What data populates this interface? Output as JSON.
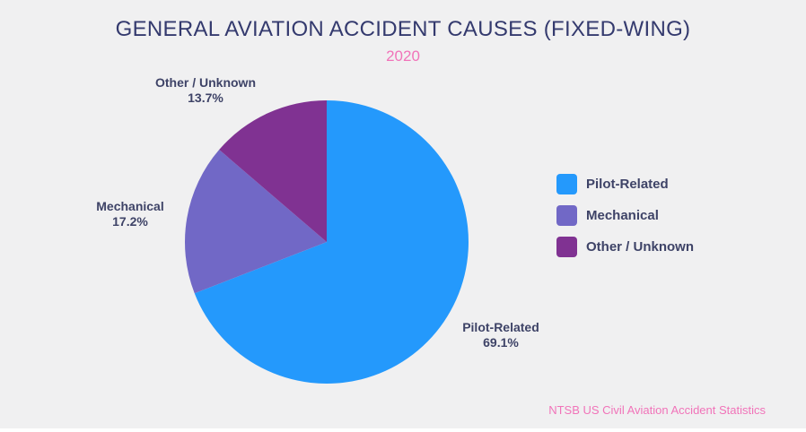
{
  "page": {
    "background_color": "#F0F0F1",
    "title": "GENERAL AVIATION ACCIDENT CAUSES (FIXED-WING)",
    "subtitle": "2020",
    "source": "NTSB US Civil Aviation Accident Statistics"
  },
  "colors": {
    "title_text": "#343A6E",
    "label_text": "#3E4367",
    "accent_pink": "#F173B9",
    "pilot_related": "#2499FC",
    "mechanical": "#7168C6",
    "other_unknown": "#803292"
  },
  "chart_data": {
    "type": "pie",
    "title": "GENERAL AVIATION ACCIDENT CAUSES (FIXED-WING)",
    "subtitle": "2020",
    "source": "NTSB US Civil Aviation Accident Statistics",
    "unit": "percent",
    "start_angle": "12-oclock",
    "direction": "clockwise",
    "legend_position": "right",
    "categories": [
      "Pilot-Related",
      "Mechanical",
      "Other / Unknown"
    ],
    "values": [
      69.1,
      17.2,
      13.7
    ],
    "slices": [
      {
        "label": "Pilot-Related",
        "value": 69.1,
        "display": "69.1%",
        "color": "#2499FC"
      },
      {
        "label": "Mechanical",
        "value": 17.2,
        "display": "17.2%",
        "color": "#7168C6"
      },
      {
        "label": "Other / Unknown",
        "value": 13.7,
        "display": "13.7%",
        "color": "#803292"
      }
    ]
  }
}
